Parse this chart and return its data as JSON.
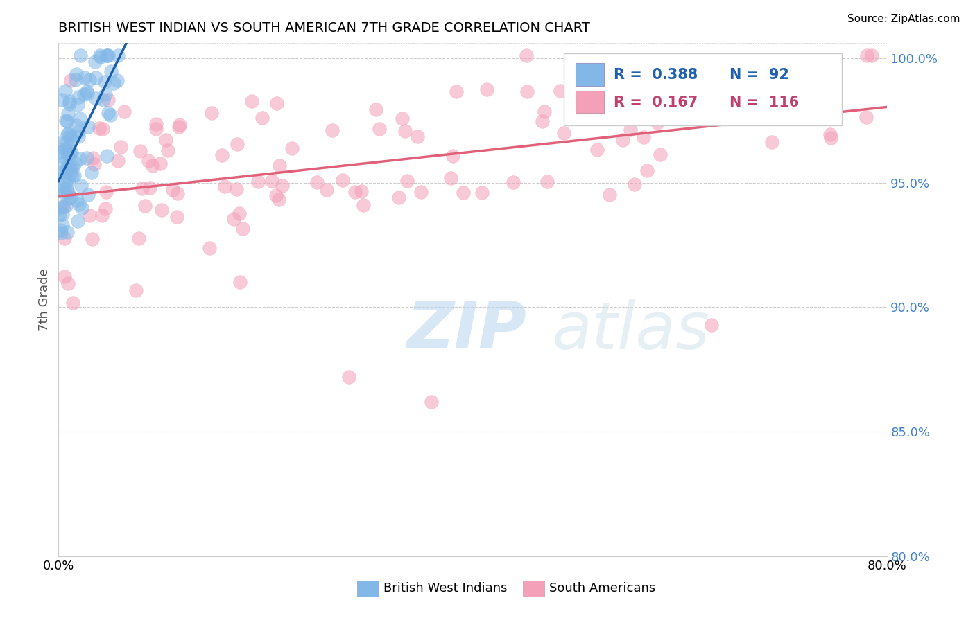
{
  "title": "BRITISH WEST INDIAN VS SOUTH AMERICAN 7TH GRADE CORRELATION CHART",
  "source_text": "Source: ZipAtlas.com",
  "ylabel": "7th Grade",
  "xmin": 0.0,
  "xmax": 0.8,
  "ymin": 0.8,
  "ymax": 1.006,
  "ytick_positions": [
    0.8,
    0.85,
    0.9,
    0.95,
    1.0
  ],
  "ytick_labels": [
    "80.0%",
    "85.0%",
    "90.0%",
    "95.0%",
    "100.0%"
  ],
  "blue_color": "#82b8e8",
  "pink_color": "#f4a0b8",
  "blue_line_color": "#1a5fa8",
  "pink_line_color": "#e0607a",
  "r_blue": 0.388,
  "n_blue": 92,
  "r_pink": 0.167,
  "n_pink": 116,
  "watermark_zip": "ZIP",
  "watermark_atlas": "atlas",
  "legend_label_blue": "British West Indians",
  "legend_label_pink": "South Americans"
}
